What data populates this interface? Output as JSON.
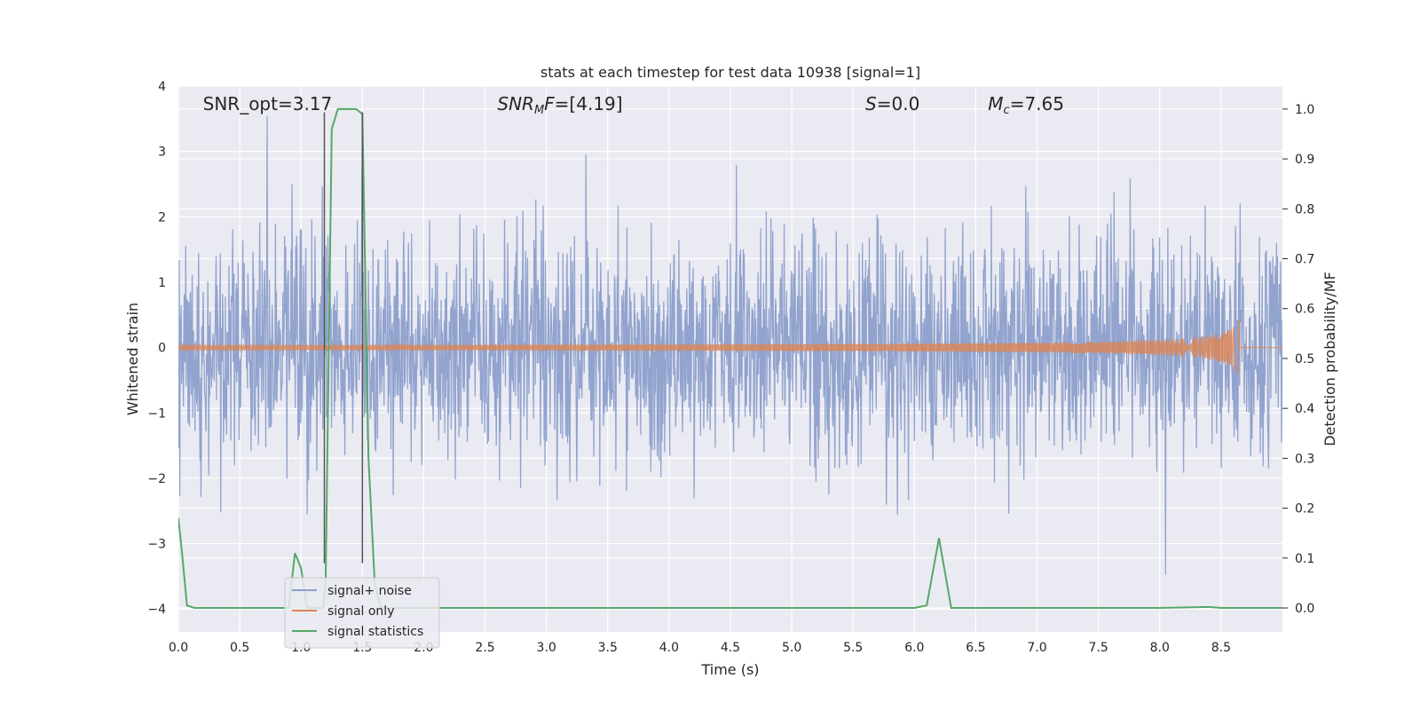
{
  "chart_data": {
    "type": "line",
    "title": "stats at each timestep for test data 10938 [signal=1]",
    "xlabel": "Time (s)",
    "ylabel_left": "Whitened strain",
    "ylabel_right": "Detection probability/MF",
    "xlim": [
      0.0,
      9.0
    ],
    "ylim_left": [
      -4.35,
      4.0
    ],
    "ylim_right": [
      -0.048,
      1.046
    ],
    "x_ticks": [
      "0.0",
      "0.5",
      "1.0",
      "1.5",
      "2.0",
      "2.5",
      "3.0",
      "3.5",
      "4.0",
      "4.5",
      "5.0",
      "5.5",
      "6.0",
      "6.5",
      "7.0",
      "7.5",
      "8.0",
      "8.5"
    ],
    "y_ticks_left": [
      "4",
      "3",
      "2",
      "1",
      "0",
      "−1",
      "−2",
      "−3",
      "−4"
    ],
    "y_ticks_right": [
      "1.0",
      "0.9",
      "0.8",
      "0.7",
      "0.6",
      "0.5",
      "0.4",
      "0.3",
      "0.2",
      "0.1",
      "0.0"
    ],
    "grid": true,
    "legend_position": "lower-left",
    "annotations": [
      {
        "base": "SNR_opt=3.17",
        "sub": "",
        "rest": "",
        "italic": false,
        "x": 0.2
      },
      {
        "base": "SNR",
        "sub": "M",
        "rest": "F=[4.19]",
        "italic": true,
        "x": 2.6
      },
      {
        "base": "S",
        "sub": "",
        "rest": "=0.0",
        "italic": true,
        "x": 5.6
      },
      {
        "base": "M",
        "sub": "c",
        "rest": "=7.65",
        "italic": true,
        "x": 6.6
      }
    ],
    "series": [
      {
        "name": "signal+ noise",
        "color": "#8c9fcb",
        "axis": "left",
        "kind": "noise",
        "envelope_rms": 0.85,
        "max_abs": 3.65
      },
      {
        "name": "signal only",
        "color": "#dd8452",
        "axis": "left",
        "kind": "chirp",
        "merger_time": 8.65,
        "peak_amplitude": 0.45
      },
      {
        "name": "signal statistics",
        "color": "#55a868",
        "axis": "right",
        "x": [
          0.0,
          0.03,
          0.07,
          0.13,
          0.5,
          0.9,
          0.95,
          1.0,
          1.05,
          1.18,
          1.2,
          1.25,
          1.3,
          1.35,
          1.4,
          1.45,
          1.5,
          1.55,
          1.6,
          1.65,
          2.0,
          3.0,
          4.0,
          5.0,
          6.0,
          6.1,
          6.2,
          6.3,
          7.0,
          8.0,
          8.4,
          8.5,
          9.0
        ],
        "y": [
          0.18,
          0.11,
          0.005,
          0.0,
          0.0,
          0.0,
          0.11,
          0.08,
          0.0,
          0.0,
          0.05,
          0.96,
          1.0,
          1.0,
          1.0,
          1.0,
          0.99,
          0.3,
          0.05,
          0.0,
          0.0,
          0.0,
          0.0,
          0.0,
          0.0,
          0.005,
          0.14,
          0.0,
          0.0,
          0.0,
          0.002,
          0.0,
          0.0
        ]
      },
      {
        "name": "",
        "color": "#555555",
        "axis": "left",
        "kind": "vline",
        "x": [
          1.19,
          1.5
        ]
      }
    ]
  }
}
